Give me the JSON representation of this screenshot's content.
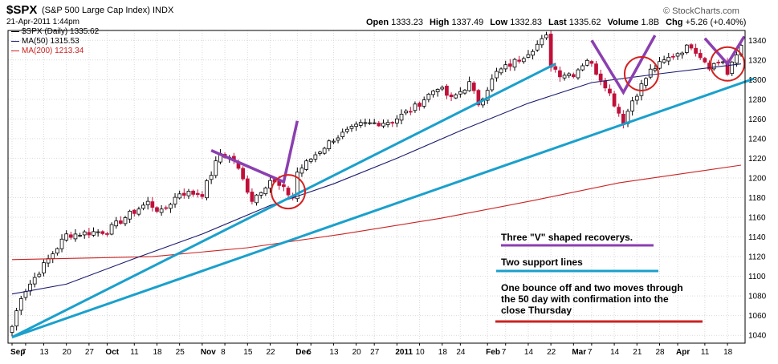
{
  "header": {
    "symbol": "$SPX",
    "name": "(S&P 500 Large Cap Index) INDX",
    "datetime": "21-Apr-2011 1:44pm",
    "brand": "© StockCharts.com",
    "ohlc": [
      {
        "label": "Open",
        "value": "1333.23"
      },
      {
        "label": "High",
        "value": "1337.49"
      },
      {
        "label": "Low",
        "value": "1332.83"
      },
      {
        "label": "Last",
        "value": "1335.62"
      },
      {
        "label": "Volume",
        "value": "1.8B"
      },
      {
        "label": "Chg",
        "value": "+5.26 (+0.40%)"
      }
    ]
  },
  "legend": [
    {
      "text": "$SPX (Daily) 1335.62",
      "color": "#000000"
    },
    {
      "text": "MA(50) 1315.53",
      "color": "#1a1a6e"
    },
    {
      "text": "MA(200) 1213.34",
      "color": "#cc2222"
    }
  ],
  "colors": {
    "up": "#000000",
    "down": "#c0103a",
    "ma50": "#1a1a6e",
    "ma200": "#cc2222",
    "support": "#1aa0cc",
    "vshape": "#8b3fb0",
    "circle": "#d42020"
  },
  "chart_data": {
    "type": "candlestick",
    "ylim": [
      1032,
      1350
    ],
    "y_ticks": [
      1040,
      1060,
      1080,
      1100,
      1120,
      1140,
      1160,
      1180,
      1200,
      1220,
      1240,
      1260,
      1280,
      1300,
      1320,
      1340
    ],
    "x_ticks": [
      "Sep",
      "7",
      "13",
      "20",
      "27",
      "Oct",
      "11",
      "18",
      "25",
      "Nov",
      "8",
      "15",
      "22",
      "Dec",
      "6",
      "13",
      "20",
      "27",
      "2011",
      "10",
      "18",
      "24",
      "Feb",
      "7",
      "14",
      "22",
      "Mar",
      "7",
      "14",
      "21",
      "28",
      "Apr",
      "11",
      "18"
    ],
    "bold_ticks": [
      "Sep",
      "Oct",
      "Nov",
      "Dec",
      "2011",
      "Feb",
      "Mar",
      "Apr"
    ],
    "close_anchors": [
      {
        "date": "2010-09-01",
        "close": 1049
      },
      {
        "date": "2010-09-03",
        "close": 1080
      },
      {
        "date": "2010-09-10",
        "close": 1105
      },
      {
        "date": "2010-09-20",
        "close": 1142
      },
      {
        "date": "2010-09-28",
        "close": 1145
      },
      {
        "date": "2010-10-01",
        "close": 1146
      },
      {
        "date": "2010-10-07",
        "close": 1160
      },
      {
        "date": "2010-10-14",
        "close": 1175
      },
      {
        "date": "2010-10-19",
        "close": 1165
      },
      {
        "date": "2010-10-25",
        "close": 1185
      },
      {
        "date": "2010-11-01",
        "close": 1184
      },
      {
        "date": "2010-11-05",
        "close": 1225
      },
      {
        "date": "2010-11-10",
        "close": 1218
      },
      {
        "date": "2010-11-16",
        "close": 1178
      },
      {
        "date": "2010-11-22",
        "close": 1198
      },
      {
        "date": "2010-11-26",
        "close": 1188
      },
      {
        "date": "2010-11-30",
        "close": 1180
      },
      {
        "date": "2010-12-01",
        "close": 1206
      },
      {
        "date": "2010-12-07",
        "close": 1224
      },
      {
        "date": "2010-12-13",
        "close": 1240
      },
      {
        "date": "2010-12-21",
        "close": 1254
      },
      {
        "date": "2010-12-31",
        "close": 1258
      },
      {
        "date": "2011-01-07",
        "close": 1272
      },
      {
        "date": "2011-01-14",
        "close": 1293
      },
      {
        "date": "2011-01-20",
        "close": 1280
      },
      {
        "date": "2011-01-26",
        "close": 1296
      },
      {
        "date": "2011-01-28",
        "close": 1276
      },
      {
        "date": "2011-02-03",
        "close": 1307
      },
      {
        "date": "2011-02-10",
        "close": 1321
      },
      {
        "date": "2011-02-18",
        "close": 1343
      },
      {
        "date": "2011-02-22",
        "close": 1315
      },
      {
        "date": "2011-02-24",
        "close": 1306
      },
      {
        "date": "2011-03-01",
        "close": 1306
      },
      {
        "date": "2011-03-04",
        "close": 1321
      },
      {
        "date": "2011-03-10",
        "close": 1295
      },
      {
        "date": "2011-03-16",
        "close": 1257
      },
      {
        "date": "2011-03-18",
        "close": 1279
      },
      {
        "date": "2011-03-24",
        "close": 1309
      },
      {
        "date": "2011-03-31",
        "close": 1325
      },
      {
        "date": "2011-04-06",
        "close": 1335
      },
      {
        "date": "2011-04-12",
        "close": 1314
      },
      {
        "date": "2011-04-15",
        "close": 1319
      },
      {
        "date": "2011-04-18",
        "close": 1305
      },
      {
        "date": "2011-04-21",
        "close": 1335
      }
    ],
    "ma50_anchors": [
      {
        "date": "2010-09-01",
        "value": 1082
      },
      {
        "date": "2010-09-20",
        "value": 1092
      },
      {
        "date": "2010-10-11",
        "value": 1118
      },
      {
        "date": "2010-11-01",
        "value": 1143
      },
      {
        "date": "2010-11-22",
        "value": 1172
      },
      {
        "date": "2010-12-13",
        "value": 1194
      },
      {
        "date": "2011-01-03",
        "value": 1220
      },
      {
        "date": "2011-01-24",
        "value": 1248
      },
      {
        "date": "2011-02-14",
        "value": 1276
      },
      {
        "date": "2011-03-07",
        "value": 1297
      },
      {
        "date": "2011-03-28",
        "value": 1306
      },
      {
        "date": "2011-04-21",
        "value": 1316
      }
    ],
    "ma200_anchors": [
      {
        "date": "2010-09-01",
        "value": 1117
      },
      {
        "date": "2010-10-15",
        "value": 1120
      },
      {
        "date": "2010-11-15",
        "value": 1129
      },
      {
        "date": "2010-12-15",
        "value": 1143
      },
      {
        "date": "2011-01-15",
        "value": 1159
      },
      {
        "date": "2011-02-15",
        "value": 1177
      },
      {
        "date": "2011-03-15",
        "value": 1195
      },
      {
        "date": "2011-04-21",
        "value": 1213
      }
    ],
    "annotations": {
      "support_lines": [
        {
          "from": {
            "date": "2010-09-01",
            "value": 1038
          },
          "to": {
            "date": "2011-02-23",
            "value": 1316
          }
        },
        {
          "from": {
            "date": "2010-09-01",
            "value": 1038
          },
          "to": {
            "date": "2011-04-25",
            "value": 1301
          }
        }
      ],
      "v_shapes": [
        {
          "points": [
            {
              "date": "2010-11-03",
              "value": 1228
            },
            {
              "date": "2010-11-26",
              "value": 1196
            },
            {
              "date": "2010-12-01",
              "value": 1258
            }
          ]
        },
        {
          "points": [
            {
              "date": "2011-03-07",
              "value": 1340
            },
            {
              "date": "2011-03-16",
              "value": 1287
            },
            {
              "date": "2011-03-25",
              "value": 1345
            }
          ]
        },
        {
          "points": [
            {
              "date": "2011-04-11",
              "value": 1342
            },
            {
              "date": "2011-04-18",
              "value": 1316
            },
            {
              "date": "2011-04-22",
              "value": 1344
            }
          ]
        }
      ],
      "circles": [
        {
          "date": "2010-11-29",
          "value": 1186
        },
        {
          "date": "2011-03-22",
          "value": 1306
        },
        {
          "date": "2011-04-18",
          "value": 1316
        }
      ],
      "notes": [
        {
          "lines": [
            "Three \"V\" shaped recoverys."
          ],
          "color_key": "vshape"
        },
        {
          "lines": [
            "Two support lines"
          ],
          "color_key": "support"
        },
        {
          "lines": [
            "One bounce off and two moves through",
            "the 50 day with confirmation into the",
            "close Thursday"
          ],
          "color_key": "ma200"
        }
      ]
    }
  }
}
